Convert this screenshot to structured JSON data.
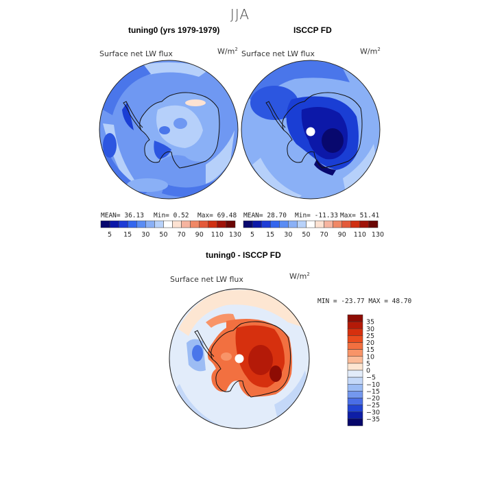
{
  "figure": {
    "season": "JJA"
  },
  "chart_data": [
    {
      "type": "heatmap",
      "projection": "south-polar-stereographic",
      "title": "tuning0 (yrs 1979-1979)",
      "variable": "Surface net LW flux",
      "units": "W/m",
      "units_exp": "2",
      "stats": {
        "mean_label": "MEAN=",
        "mean": "36.13",
        "min_label": "Min=",
        "min": "0.52",
        "max_label": "Max=",
        "max": "69.48"
      },
      "colorbar": {
        "levels": [
          "5",
          "15",
          "30",
          "50",
          "70",
          "90",
          "110",
          "130"
        ],
        "colors": [
          "#08086e",
          "#0c18a8",
          "#1e3cd6",
          "#3466ee",
          "#5a8cf4",
          "#8ab0f6",
          "#b8d2fa",
          "#ffffff",
          "#fde2d2",
          "#f6b4a0",
          "#f08866",
          "#e45a3a",
          "#d03012",
          "#a01208",
          "#6a0604"
        ]
      }
    },
    {
      "type": "heatmap",
      "projection": "south-polar-stereographic",
      "title": "ISCCP FD",
      "variable": "Surface net LW flux",
      "units": "W/m",
      "units_exp": "2",
      "stats": {
        "mean_label": "MEAN=",
        "mean": "28.70",
        "min_label": "Min=",
        "min": "-11.33",
        "max_label": "Max=",
        "max": "51.41"
      },
      "colorbar": {
        "levels": [
          "5",
          "15",
          "30",
          "50",
          "70",
          "90",
          "110",
          "130"
        ],
        "colors": [
          "#08086e",
          "#0c18a8",
          "#1e3cd6",
          "#3466ee",
          "#5a8cf4",
          "#8ab0f6",
          "#b8d2fa",
          "#ffffff",
          "#fde2d2",
          "#f6b4a0",
          "#f08866",
          "#e45a3a",
          "#d03012",
          "#a01208",
          "#6a0604"
        ]
      }
    },
    {
      "type": "heatmap",
      "projection": "south-polar-stereographic",
      "title": "tuning0 - ISCCP FD",
      "variable": "Surface net LW flux",
      "units": "W/m",
      "units_exp": "2",
      "stats": {
        "text": "MIN = -23.77 MAX =  48.70",
        "min": -23.77,
        "max": 48.7
      },
      "colorbar": {
        "orientation": "vertical",
        "levels": [
          "35",
          "30",
          "25",
          "20",
          "15",
          "10",
          "5",
          "0",
          "-5",
          "-10",
          "-15",
          "-20",
          "-25",
          "-30",
          "-35"
        ],
        "colors": [
          "#8e0c04",
          "#b41a08",
          "#d6300e",
          "#ea4c1e",
          "#f27040",
          "#f89468",
          "#fbbb98",
          "#fde6d2",
          "#e2ecfa",
          "#c4d8f8",
          "#9cbcf4",
          "#7498ee",
          "#4a6ee6",
          "#2244d2",
          "#0e1ea6",
          "#06066a"
        ]
      }
    }
  ]
}
